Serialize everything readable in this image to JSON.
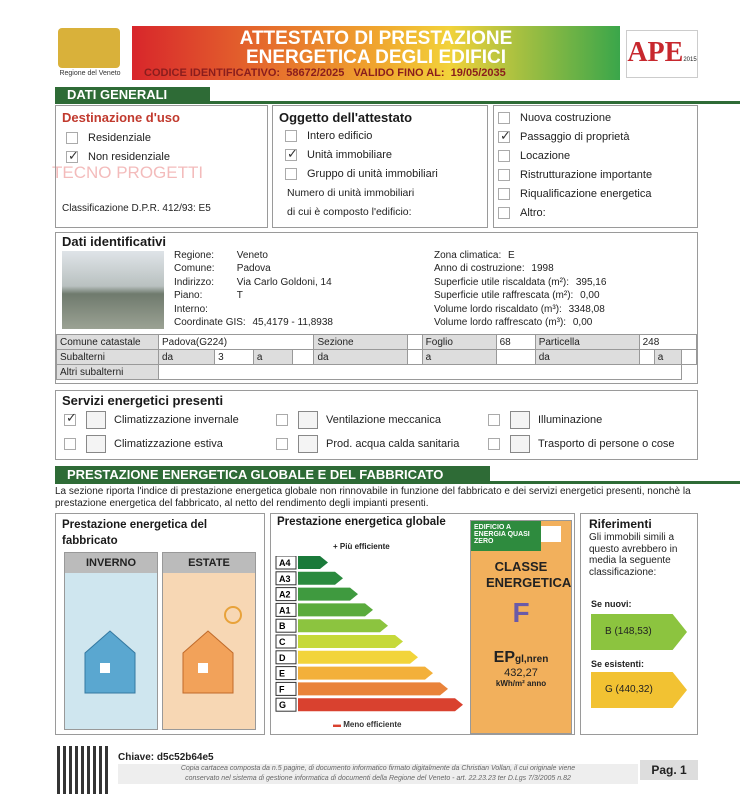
{
  "header": {
    "title_line1": "ATTESTATO DI PRESTAZIONE",
    "title_line2": "ENERGETICA DEGLI EDIFICI",
    "code_label": "CODICE IDENTIFICATIVO:",
    "code": "58672/2025",
    "valid_label": "VALIDO FINO AL:",
    "valid": "19/05/2035",
    "region": "Regione del Veneto",
    "logo": "APE",
    "logo_year": "2015",
    "watermark": "TECNO PROGETTI"
  },
  "general": {
    "section_title": "DATI GENERALI",
    "destinazione": {
      "title": "Destinazione d'uso",
      "options": [
        {
          "label": "Residenziale",
          "checked": false
        },
        {
          "label": "Non residenziale",
          "checked": true
        }
      ],
      "classification": "Classificazione D.P.R. 412/93: E5"
    },
    "oggetto": {
      "title": "Oggetto dell'attestato",
      "options": [
        {
          "label": "Intero edificio",
          "checked": false
        },
        {
          "label": "Unità immobiliare",
          "checked": true
        },
        {
          "label": "Gruppo di unità immobiliari",
          "checked": false
        }
      ],
      "units_line1": "Numero di unità immobiliari",
      "units_line2": "di cui è composto l'edificio:"
    },
    "motivazione": {
      "options": [
        {
          "label": "Nuova costruzione",
          "checked": false
        },
        {
          "label": "Passaggio di proprietà",
          "checked": true
        },
        {
          "label": "Locazione",
          "checked": false
        },
        {
          "label": "Ristrutturazione importante",
          "checked": false
        },
        {
          "label": "Riqualificazione energetica",
          "checked": false
        },
        {
          "label": "Altro:",
          "checked": false
        }
      ]
    }
  },
  "identification": {
    "title": "Dati identificativi",
    "left": [
      [
        "Regione:",
        "Veneto"
      ],
      [
        "Comune:",
        "Padova"
      ],
      [
        "Indirizzo:",
        "Via Carlo Goldoni, 14"
      ],
      [
        "Piano:",
        "T"
      ],
      [
        "Interno:"
      ],
      [
        "Coordinate GIS:",
        "45,4179 - 11,8938"
      ]
    ],
    "right": [
      [
        "Zona climatica:",
        "E"
      ],
      [
        "Anno di costruzione:",
        "1998"
      ],
      [
        "Superficie utile riscaldata (m²):",
        "395,16"
      ],
      [
        "Superficie utile raffrescata (m²):",
        "0,00"
      ],
      [
        "Volume lordo riscaldato (m³):",
        "3348,08"
      ],
      [
        "Volume lordo raffrescato (m³):",
        "0,00"
      ]
    ],
    "cadastre": {
      "comune_label": "Comune catastale",
      "comune": "Padova(G224)",
      "sezione_label": "Sezione",
      "foglio_label": "Foglio",
      "foglio": "68",
      "particella_label": "Particella",
      "particella": "248",
      "subalterni_label": "Subalterni",
      "da": "da",
      "a": "a",
      "sub_from": "3",
      "altri_label": "Altri subalterni"
    }
  },
  "services": {
    "title": "Servizi energetici presenti",
    "items": [
      {
        "label": "Climatizzazione invernale",
        "checked": true
      },
      {
        "label": "Climatizzazione estiva",
        "checked": false
      },
      {
        "label": "Ventilazione meccanica",
        "checked": false
      },
      {
        "label": "Prod. acqua calda sanitaria",
        "checked": false
      },
      {
        "label": "Illuminazione",
        "checked": false
      },
      {
        "label": "Trasporto di persone o cose",
        "checked": false
      }
    ]
  },
  "performance": {
    "section_title": "PRESTAZIONE ENERGETICA GLOBALE E DEL FABBRICATO",
    "intro": "La sezione riporta l'indice di prestazione energetica globale non rinnovabile in funzione del fabbricato e dei servizi energetici presenti, nonchè la prestazione energetica del fabbricato, al netto del rendimento degli impianti presenti.",
    "fabbricato": {
      "title": "Prestazione energetica del fabbricato",
      "winter": "INVERNO",
      "summer": "ESTATE"
    },
    "globale": {
      "title": "Prestazione energetica globale",
      "top": "Più efficiente",
      "bottom": "Meno efficiente",
      "classes": [
        {
          "label": "A4",
          "color": "#1a7a3a"
        },
        {
          "label": "A3",
          "color": "#2b8a3e"
        },
        {
          "label": "A2",
          "color": "#3f9a3f"
        },
        {
          "label": "A1",
          "color": "#5aab3c"
        },
        {
          "label": "B",
          "color": "#8cc43f"
        },
        {
          "label": "C",
          "color": "#c6d93a"
        },
        {
          "label": "D",
          "color": "#f2d43a"
        },
        {
          "label": "E",
          "color": "#f3b03a"
        },
        {
          "label": "F",
          "color": "#e9833a"
        },
        {
          "label": "G",
          "color": "#d9412f"
        }
      ],
      "nzeb": "EDIFICIO A ENERGIA QUASI ZERO",
      "class_title": "CLASSE ENERGETICA",
      "class": "F",
      "ep": "EP",
      "ep_sub": "gl,nren",
      "ep_value": "432,27",
      "ep_unit": "kWh/m² anno"
    },
    "riferimenti": {
      "title": "Riferimenti",
      "text": "Gli immobili simili a questo avrebbero in media la seguente classificazione:",
      "new_label": "Se nuovi:",
      "new_value": "B (148,53)",
      "existing_label": "Se esistenti:",
      "existing_value": "G (440,32)"
    }
  },
  "footer": {
    "key": "Chiave: d5c52b64e5",
    "note_line1": "Copia cartacea composta da n.5 pagine, di documento informatico firmato digitalmente da Christian Vollan, il cui originale viene",
    "note_line2": "conservato nel sistema di gestione informatica di documenti della Regione del Veneto - art. 22.23.23 ter D.Lgs 7/3/2005 n.82",
    "page": "Pag. 1"
  }
}
